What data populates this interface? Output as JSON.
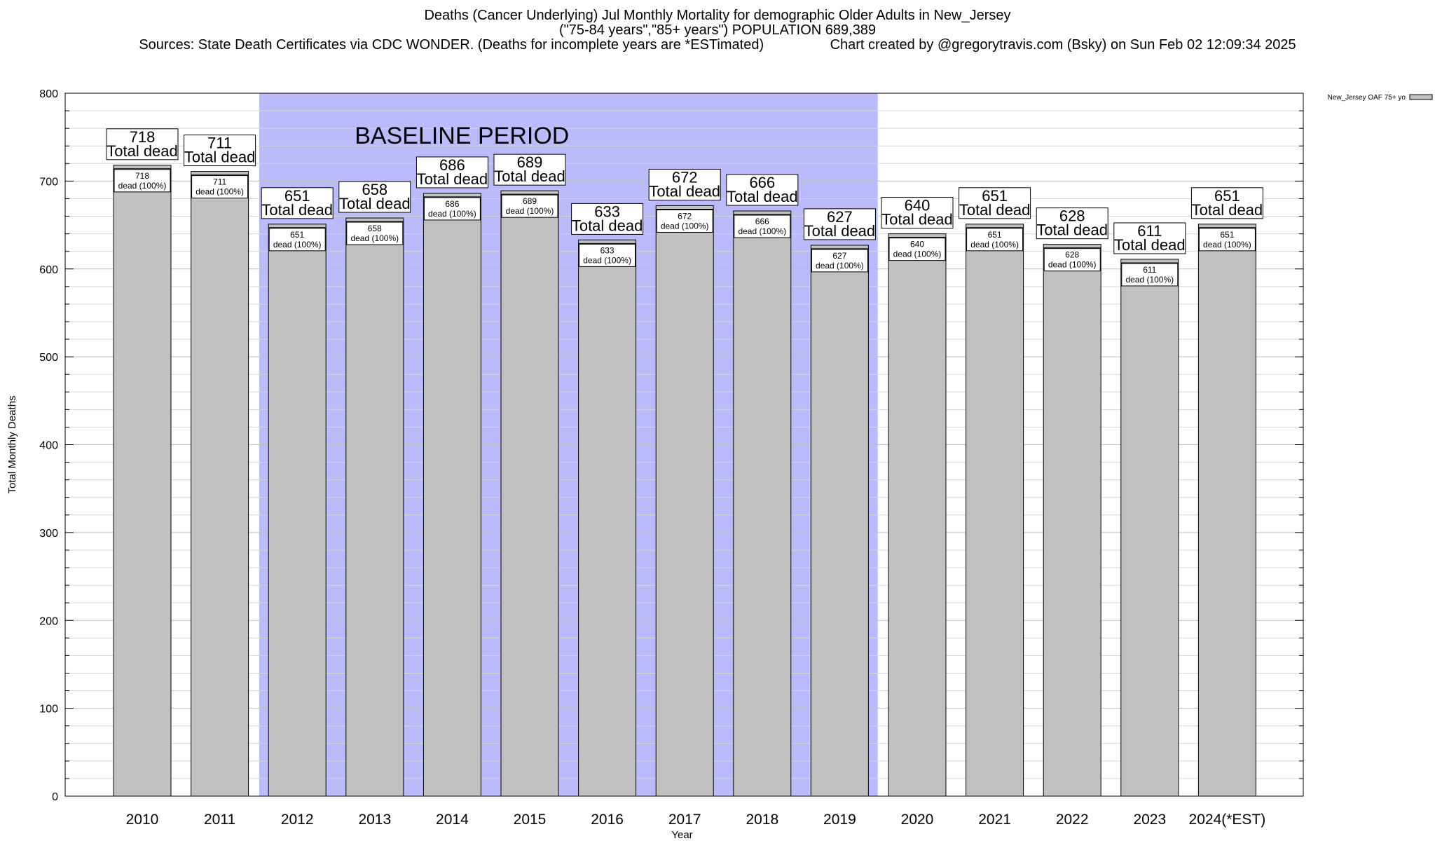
{
  "header": {
    "title_line1": "Deaths (Cancer Underlying) Jul Monthly Mortality for demographic Older Adults in New_Jersey",
    "title_line2": "(\"75-84 years\",\"85+ years\") POPULATION 689,389",
    "title_line3": "Sources: State Death Certificates via CDC WONDER. (Deaths for incomplete years are *ESTimated)                 Chart created by @gregorytravis.com (Bsky) on Sun Feb 02 12:09:34 2025"
  },
  "chart_data": {
    "type": "bar",
    "xlabel": "Year",
    "ylabel": "Total Monthly Deaths",
    "ylim": [
      0,
      800
    ],
    "yticks": [
      0,
      100,
      200,
      300,
      400,
      500,
      600,
      700,
      800
    ],
    "grid": true,
    "legend_position": "top-right",
    "categories": [
      "2010",
      "2011",
      "2012",
      "2013",
      "2014",
      "2015",
      "2016",
      "2017",
      "2018",
      "2019",
      "2020",
      "2021",
      "2022",
      "2023",
      "2024(*EST)"
    ],
    "series": [
      {
        "name": "New_Jersey OAF 75+ yo",
        "color": "#c0c0c0",
        "values": [
          718,
          711,
          651,
          658,
          686,
          689,
          633,
          672,
          666,
          627,
          640,
          651,
          628,
          611,
          651
        ]
      }
    ],
    "total_label_suffix": "Total dead",
    "inner_label_suffix": "dead (100%)",
    "baseline_period": {
      "label": "BASELINE PERIOD",
      "start_category": "2012",
      "end_category": "2019",
      "color": "#bbbbfb"
    }
  }
}
